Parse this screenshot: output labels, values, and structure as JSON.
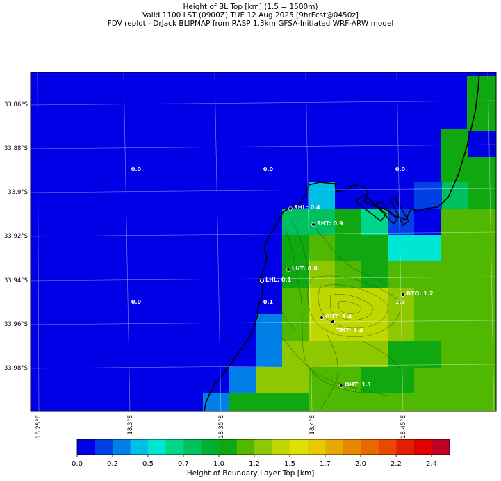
{
  "title": {
    "line1": "Height of BL Top [km] (1.5 = 1500m)",
    "line2": "Valid 1100 LST (0900Z) TUE 12 Aug 2025 [9hrFcst@0450z]",
    "line3": "FDV replot - DrJack BLIPMAP from RASP 1.3km GFSA-Initiated WRF-ARW model"
  },
  "lat_labels": [
    "33.86°S",
    "33.88°S",
    "33.9°S",
    "33.92°S",
    "33.94°S",
    "33.96°S",
    "33.98°S"
  ],
  "lon_labels": [
    "18.25°E",
    "18.3°E",
    "18.35°E",
    "18.4°E",
    "18.45°E"
  ],
  "grid_values": [
    "0.0",
    "0.0",
    "0.0",
    "0.0",
    "0.1",
    "1.3"
  ],
  "stations": [
    {
      "label": "SHL: 0.4"
    },
    {
      "label": "SHT: 0.9"
    },
    {
      "label": "LHT: 0.8"
    },
    {
      "label": "LHL: 0.1"
    },
    {
      "label": "BTO: 1.2"
    },
    {
      "label": "GUT: 1.4"
    },
    {
      "label": "TMT: 1.4"
    },
    {
      "label": "OHT: 1.1"
    }
  ],
  "colorbar": {
    "ticks": [
      "0.0",
      "0.2",
      "0.5",
      "0.7",
      "1.0",
      "1.2",
      "1.5",
      "1.7",
      "2.0",
      "2.2",
      "2.4"
    ],
    "label": "Height of Boundary Layer Top [km]",
    "colors": [
      "#0000e6",
      "#0040e6",
      "#0080e6",
      "#00bfe6",
      "#00e6d4",
      "#00d68a",
      "#00c060",
      "#00b030",
      "#10a810",
      "#50b800",
      "#8ec800",
      "#c0d800",
      "#e0e000",
      "#e8c800",
      "#e8a800",
      "#e88800",
      "#e86800",
      "#e84800",
      "#e02000",
      "#e00000",
      "#c00020"
    ]
  }
}
